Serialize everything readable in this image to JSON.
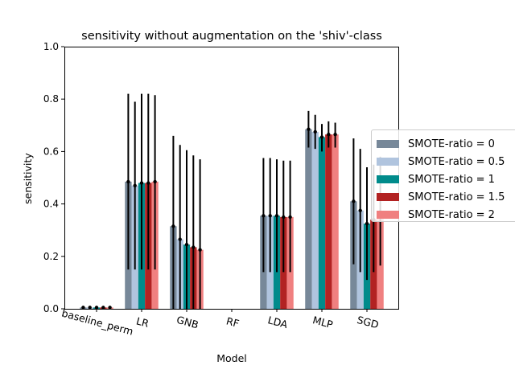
{
  "chart_data": {
    "type": "bar",
    "title": "sensitivity without augmentation on the 'shiv'-class",
    "xlabel": "Model",
    "ylabel": "sensitivity",
    "ylim": [
      0,
      1.0
    ],
    "yticks": [
      "0.0",
      "0.2",
      "0.4",
      "0.6",
      "0.8",
      "1.0"
    ],
    "categories": [
      "baseline_perm",
      "LR",
      "GNB",
      "RF",
      "LDA",
      "MLP",
      "SGD"
    ],
    "legend_position": "right-outside",
    "grid": false,
    "series": [
      {
        "name": "SMOTE-ratio = 0",
        "color": "#778899",
        "values": [
          0.005,
          0.485,
          0.315,
          0.0,
          0.355,
          0.685,
          0.41
        ],
        "err_low": [
          0.005,
          0.15,
          0.0,
          0.0,
          0.14,
          0.615,
          0.17
        ],
        "err_high": [
          0.005,
          0.82,
          0.66,
          0.0,
          0.575,
          0.755,
          0.65
        ]
      },
      {
        "name": "SMOTE-ratio = 0.5",
        "color": "#b0c4de",
        "values": [
          0.005,
          0.47,
          0.265,
          0.0,
          0.355,
          0.675,
          0.375
        ],
        "err_low": [
          0.005,
          0.15,
          0.0,
          0.0,
          0.14,
          0.61,
          0.14
        ],
        "err_high": [
          0.005,
          0.79,
          0.625,
          0.0,
          0.575,
          0.74,
          0.61
        ]
      },
      {
        "name": "SMOTE-ratio = 1",
        "color": "#008b8b",
        "values": [
          0.005,
          0.48,
          0.245,
          0.0,
          0.355,
          0.655,
          0.325
        ],
        "err_low": [
          0.005,
          0.15,
          0.0,
          0.0,
          0.14,
          0.6,
          0.11
        ],
        "err_high": [
          0.005,
          0.82,
          0.605,
          0.0,
          0.57,
          0.705,
          0.54
        ]
      },
      {
        "name": "SMOTE-ratio = 1.5",
        "color": "#b22222",
        "values": [
          0.005,
          0.48,
          0.235,
          0.0,
          0.35,
          0.665,
          0.34
        ],
        "err_low": [
          0.005,
          0.15,
          0.0,
          0.0,
          0.14,
          0.615,
          0.14
        ],
        "err_high": [
          0.005,
          0.82,
          0.585,
          0.0,
          0.565,
          0.715,
          0.55
        ]
      },
      {
        "name": "SMOTE-ratio = 2",
        "color": "#f08080",
        "values": [
          0.005,
          0.485,
          0.225,
          0.0,
          0.35,
          0.665,
          0.37
        ],
        "err_low": [
          0.005,
          0.15,
          0.0,
          0.0,
          0.14,
          0.615,
          0.165
        ],
        "err_high": [
          0.005,
          0.815,
          0.57,
          0.0,
          0.565,
          0.71,
          0.58
        ]
      }
    ]
  }
}
